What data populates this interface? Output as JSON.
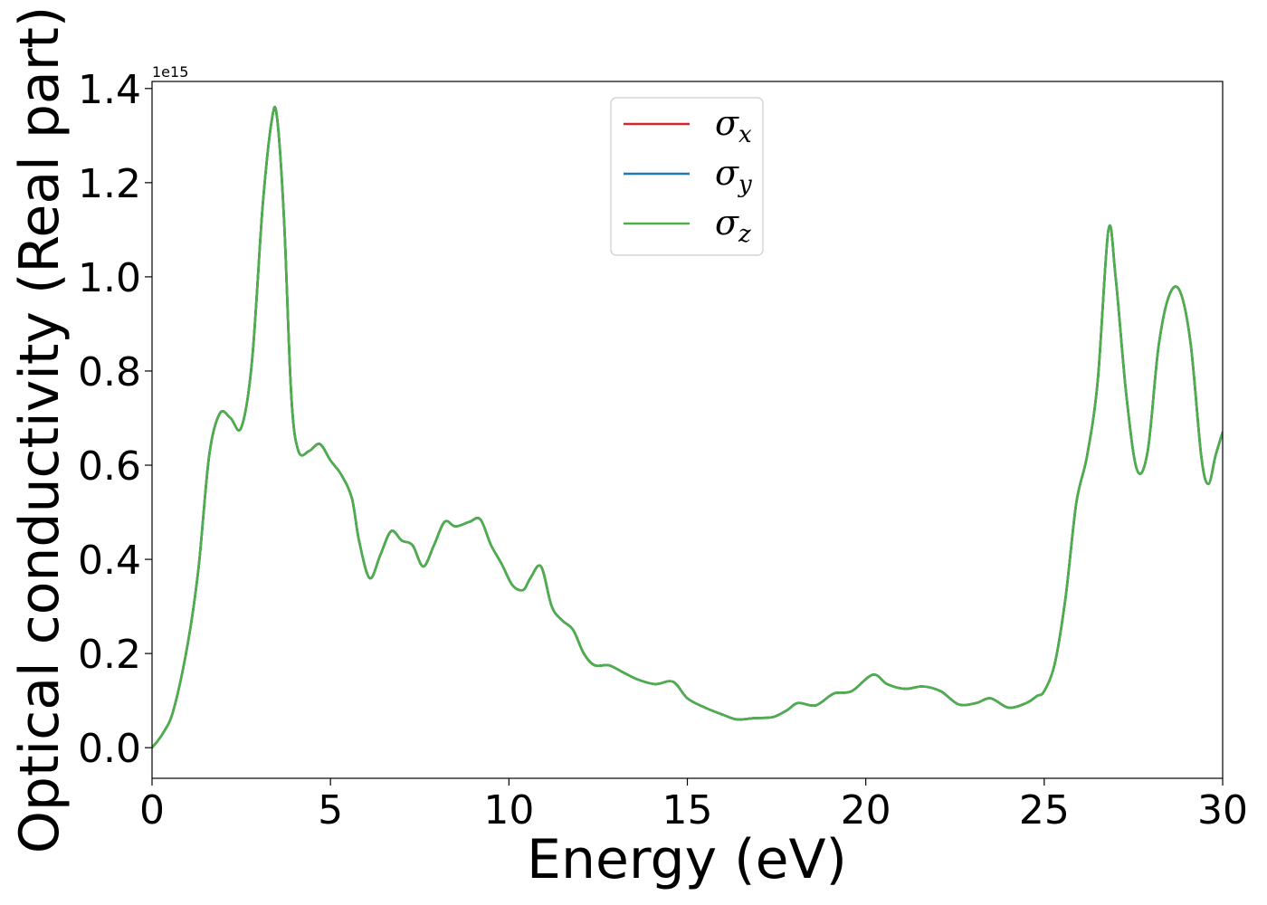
{
  "chart_data": {
    "type": "line",
    "title": "",
    "xlabel": "Energy (eV)",
    "ylabel": "Optical conductivity (Real part)",
    "y_offset_label": "1e15",
    "xlim": [
      0,
      30
    ],
    "ylim": [
      -0.065,
      1.415
    ],
    "xticks": [
      0,
      5,
      10,
      15,
      20,
      25,
      30
    ],
    "xtick_labels": [
      "0",
      "5",
      "10",
      "15",
      "20",
      "25",
      "30"
    ],
    "yticks": [
      0.0,
      0.2,
      0.4,
      0.6,
      0.8,
      1.0,
      1.2,
      1.4
    ],
    "ytick_labels": [
      "0.0",
      "0.2",
      "0.4",
      "0.6",
      "0.8",
      "1.0",
      "1.2",
      "1.4"
    ],
    "grid": false,
    "legend_position": "upper-center",
    "x": [
      0,
      0.3,
      0.6,
      1.0,
      1.3,
      1.6,
      1.9,
      2.2,
      2.5,
      2.8,
      3.1,
      3.35,
      3.5,
      3.7,
      3.9,
      4.1,
      4.4,
      4.7,
      5.0,
      5.3,
      5.6,
      5.8,
      6.1,
      6.4,
      6.7,
      7.0,
      7.3,
      7.6,
      7.9,
      8.2,
      8.5,
      8.9,
      9.2,
      9.5,
      9.8,
      10.1,
      10.4,
      10.6,
      10.9,
      11.2,
      11.5,
      11.8,
      12.1,
      12.4,
      12.8,
      13.2,
      13.6,
      14.1,
      14.6,
      15.0,
      15.5,
      16.0,
      16.4,
      16.9,
      17.4,
      17.8,
      18.1,
      18.6,
      19.1,
      19.6,
      20.2,
      20.6,
      21.1,
      21.6,
      22.1,
      22.6,
      23.1,
      23.5,
      24.0,
      24.5,
      24.8,
      25.0,
      25.3,
      25.6,
      25.9,
      26.2,
      26.5,
      26.8,
      27.0,
      27.3,
      27.6,
      27.9,
      28.2,
      28.5,
      28.8,
      29.1,
      29.4,
      29.6,
      29.8,
      30.0
    ],
    "series": [
      {
        "name": "σx",
        "label_main": "σ",
        "label_sub": "x",
        "color": "#d62728",
        "values": [
          0.0,
          0.03,
          0.08,
          0.22,
          0.38,
          0.62,
          0.71,
          0.7,
          0.68,
          0.82,
          1.15,
          1.33,
          1.34,
          1.12,
          0.75,
          0.63,
          0.63,
          0.645,
          0.61,
          0.58,
          0.53,
          0.44,
          0.36,
          0.41,
          0.46,
          0.44,
          0.43,
          0.385,
          0.43,
          0.48,
          0.47,
          0.48,
          0.485,
          0.43,
          0.39,
          0.345,
          0.335,
          0.36,
          0.385,
          0.3,
          0.27,
          0.25,
          0.2,
          0.175,
          0.175,
          0.16,
          0.145,
          0.135,
          0.14,
          0.105,
          0.085,
          0.07,
          0.06,
          0.063,
          0.065,
          0.08,
          0.095,
          0.09,
          0.115,
          0.12,
          0.155,
          0.135,
          0.125,
          0.13,
          0.12,
          0.092,
          0.095,
          0.105,
          0.085,
          0.095,
          0.11,
          0.12,
          0.18,
          0.32,
          0.52,
          0.62,
          0.78,
          1.1,
          1.0,
          0.75,
          0.59,
          0.63,
          0.85,
          0.96,
          0.97,
          0.86,
          0.62,
          0.56,
          0.62,
          0.67
        ]
      },
      {
        "name": "σy",
        "label_main": "σ",
        "label_sub": "y",
        "color": "#1f77b4",
        "values": [
          0.0,
          0.03,
          0.08,
          0.22,
          0.38,
          0.62,
          0.71,
          0.7,
          0.68,
          0.82,
          1.15,
          1.33,
          1.34,
          1.12,
          0.75,
          0.63,
          0.63,
          0.645,
          0.61,
          0.58,
          0.53,
          0.44,
          0.36,
          0.41,
          0.46,
          0.44,
          0.43,
          0.385,
          0.43,
          0.48,
          0.47,
          0.48,
          0.485,
          0.43,
          0.39,
          0.345,
          0.335,
          0.36,
          0.385,
          0.3,
          0.27,
          0.25,
          0.2,
          0.175,
          0.175,
          0.16,
          0.145,
          0.135,
          0.14,
          0.105,
          0.085,
          0.07,
          0.06,
          0.063,
          0.065,
          0.08,
          0.095,
          0.09,
          0.115,
          0.12,
          0.155,
          0.135,
          0.125,
          0.13,
          0.12,
          0.092,
          0.095,
          0.105,
          0.085,
          0.095,
          0.11,
          0.12,
          0.18,
          0.32,
          0.52,
          0.62,
          0.78,
          1.1,
          1.0,
          0.75,
          0.59,
          0.63,
          0.85,
          0.96,
          0.97,
          0.86,
          0.62,
          0.56,
          0.62,
          0.67
        ]
      },
      {
        "name": "σz",
        "label_main": "σ",
        "label_sub": "z",
        "color": "#4daf4a",
        "values": [
          0.0,
          0.03,
          0.08,
          0.22,
          0.38,
          0.62,
          0.71,
          0.7,
          0.68,
          0.82,
          1.15,
          1.33,
          1.34,
          1.12,
          0.75,
          0.63,
          0.63,
          0.645,
          0.61,
          0.58,
          0.53,
          0.44,
          0.36,
          0.41,
          0.46,
          0.44,
          0.43,
          0.385,
          0.43,
          0.48,
          0.47,
          0.48,
          0.485,
          0.43,
          0.39,
          0.345,
          0.335,
          0.36,
          0.385,
          0.3,
          0.27,
          0.25,
          0.2,
          0.175,
          0.175,
          0.16,
          0.145,
          0.135,
          0.14,
          0.105,
          0.085,
          0.07,
          0.06,
          0.063,
          0.065,
          0.08,
          0.095,
          0.09,
          0.115,
          0.12,
          0.155,
          0.135,
          0.125,
          0.13,
          0.12,
          0.092,
          0.095,
          0.105,
          0.085,
          0.095,
          0.11,
          0.12,
          0.18,
          0.32,
          0.52,
          0.62,
          0.78,
          1.1,
          1.0,
          0.75,
          0.59,
          0.63,
          0.85,
          0.96,
          0.97,
          0.86,
          0.62,
          0.56,
          0.62,
          0.67
        ]
      }
    ]
  }
}
